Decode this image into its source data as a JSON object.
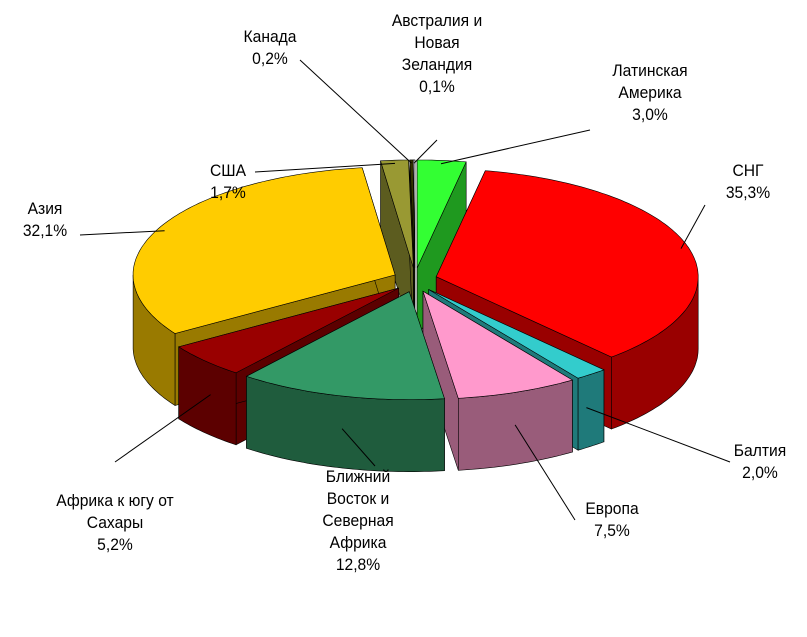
{
  "chart_data": {
    "type": "pie",
    "categories": [
      "Латинская Америка",
      "СНГ",
      "Балтия",
      "Европа",
      "Ближний Восток и Северная Африка",
      "Африка к югу от Сахары",
      "Азия",
      "США",
      "Канада",
      "Австралия и Новая Зеландия"
    ],
    "values": [
      3.0,
      35.3,
      2.0,
      7.5,
      12.8,
      5.2,
      32.1,
      1.7,
      0.2,
      0.1
    ],
    "value_labels": [
      "3,0%",
      "35,3%",
      "2,0%",
      "7,5%",
      "12,8%",
      "5,2%",
      "32,1%",
      "1,7%",
      "0,2%",
      "0,1%"
    ],
    "colors": [
      "#33ff33",
      "#ff0000",
      "#33cccc",
      "#ff99cc",
      "#339966",
      "#990000",
      "#ffcc00",
      "#999933",
      "#333300",
      "#ffffff"
    ]
  }
}
